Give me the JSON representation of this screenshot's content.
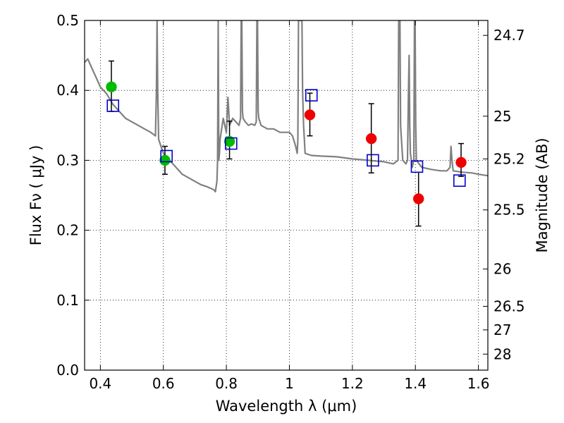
{
  "chart_data": {
    "type": "scatter",
    "title": "",
    "xlabel": "Wavelength  λ (μm)",
    "ylabel": "Flux  Fν  ( μJy )",
    "y2label": "Magnitude (AB)",
    "xlim": [
      0.35,
      1.63
    ],
    "ylim": [
      0.0,
      0.5
    ],
    "grid": true,
    "x_ticks": [
      0.4,
      0.6,
      0.8,
      1.0,
      1.2,
      1.4,
      1.6
    ],
    "x_tick_labels": [
      "0.4",
      "0.6",
      "0.8",
      "1",
      "1.2",
      "1.4",
      "1.6"
    ],
    "y_ticks": [
      0.0,
      0.1,
      0.2,
      0.3,
      0.4,
      0.5
    ],
    "y_tick_labels": [
      "0.0",
      "0.1",
      "0.2",
      "0.3",
      "0.4",
      "0.5"
    ],
    "magnitude_ticks": [
      {
        "label": "24.7",
        "mag": 24.7
      },
      {
        "label": "25",
        "mag": 25.0
      },
      {
        "label": "25.2",
        "mag": 25.2
      },
      {
        "label": "25.5",
        "mag": 25.5
      },
      {
        "label": "26",
        "mag": 26.0
      },
      {
        "label": "26.5",
        "mag": 26.5
      },
      {
        "label": "27",
        "mag": 27.0
      },
      {
        "label": "28",
        "mag": 28.0
      }
    ],
    "colors": {
      "model": "#808080",
      "green": "#00bb00",
      "red": "#ee0000",
      "square": "#0000cc",
      "errorbar": "#000000",
      "grid": "#000000"
    },
    "series": [
      {
        "name": "model spectrum",
        "kind": "line",
        "x": [
          0.35,
          0.36,
          0.37,
          0.38,
          0.39,
          0.4,
          0.42,
          0.44,
          0.46,
          0.48,
          0.5,
          0.52,
          0.54,
          0.56,
          0.575,
          0.578,
          0.58,
          0.582,
          0.585,
          0.6,
          0.62,
          0.64,
          0.66,
          0.68,
          0.7,
          0.72,
          0.74,
          0.76,
          0.765,
          0.77,
          0.772,
          0.774,
          0.776,
          0.778,
          0.78,
          0.79,
          0.8,
          0.805,
          0.81,
          0.82,
          0.83,
          0.84,
          0.845,
          0.847,
          0.849,
          0.851,
          0.853,
          0.86,
          0.87,
          0.88,
          0.89,
          0.895,
          0.897,
          0.899,
          0.901,
          0.903,
          0.91,
          0.93,
          0.95,
          0.97,
          1.0,
          1.01,
          1.02,
          1.025,
          1.027,
          1.029,
          1.031,
          1.033,
          1.035,
          1.038,
          1.04,
          1.042,
          1.045,
          1.05,
          1.07,
          1.1,
          1.15,
          1.2,
          1.25,
          1.3,
          1.33,
          1.345,
          1.347,
          1.349,
          1.351,
          1.353,
          1.36,
          1.37,
          1.375,
          1.378,
          1.38,
          1.382,
          1.384,
          1.39,
          1.395,
          1.397,
          1.399,
          1.401,
          1.403,
          1.42,
          1.45,
          1.48,
          1.5,
          1.51,
          1.513,
          1.516,
          1.52,
          1.55,
          1.58,
          1.6,
          1.63
        ],
        "y": [
          0.44,
          0.445,
          0.435,
          0.425,
          0.415,
          0.405,
          0.395,
          0.38,
          0.37,
          0.36,
          0.355,
          0.35,
          0.345,
          0.34,
          0.335,
          0.4,
          0.5,
          0.4,
          0.33,
          0.31,
          0.3,
          0.29,
          0.28,
          0.275,
          0.27,
          0.265,
          0.262,
          0.258,
          0.255,
          0.27,
          0.3,
          0.5,
          0.3,
          0.31,
          0.33,
          0.36,
          0.34,
          0.39,
          0.35,
          0.36,
          0.355,
          0.35,
          0.36,
          0.5,
          0.5,
          0.37,
          0.36,
          0.355,
          0.35,
          0.352,
          0.35,
          0.355,
          0.5,
          0.5,
          0.37,
          0.36,
          0.35,
          0.345,
          0.345,
          0.34,
          0.34,
          0.335,
          0.32,
          0.31,
          0.33,
          0.5,
          0.5,
          0.5,
          0.5,
          0.5,
          0.5,
          0.4,
          0.35,
          0.31,
          0.307,
          0.306,
          0.305,
          0.302,
          0.3,
          0.298,
          0.295,
          0.3,
          0.5,
          0.5,
          0.5,
          0.35,
          0.3,
          0.295,
          0.3,
          0.4,
          0.45,
          0.35,
          0.31,
          0.29,
          0.3,
          0.5,
          0.5,
          0.35,
          0.3,
          0.29,
          0.287,
          0.285,
          0.285,
          0.29,
          0.32,
          0.3,
          0.285,
          0.283,
          0.282,
          0.28,
          0.278
        ]
      },
      {
        "name": "green detections",
        "kind": "points",
        "x": [
          0.435,
          0.605,
          0.81
        ],
        "y": [
          0.405,
          0.3,
          0.327
        ],
        "yerr_low": [
          0.035,
          0.02,
          0.025
        ],
        "yerr_high": [
          0.037,
          0.02,
          0.029
        ]
      },
      {
        "name": "red detections",
        "kind": "points",
        "x": [
          1.065,
          1.26,
          1.41,
          1.545
        ],
        "y": [
          0.365,
          0.331,
          0.245,
          0.297
        ],
        "yerr_low": [
          0.03,
          0.049,
          0.039,
          0.02
        ],
        "yerr_high": [
          0.031,
          0.05,
          0.038,
          0.027
        ]
      },
      {
        "name": "model photometry",
        "kind": "squares",
        "x": [
          0.44,
          0.61,
          0.815,
          1.07,
          1.265,
          1.405,
          1.54
        ],
        "y": [
          0.378,
          0.306,
          0.324,
          0.393,
          0.3,
          0.291,
          0.271
        ]
      }
    ]
  }
}
